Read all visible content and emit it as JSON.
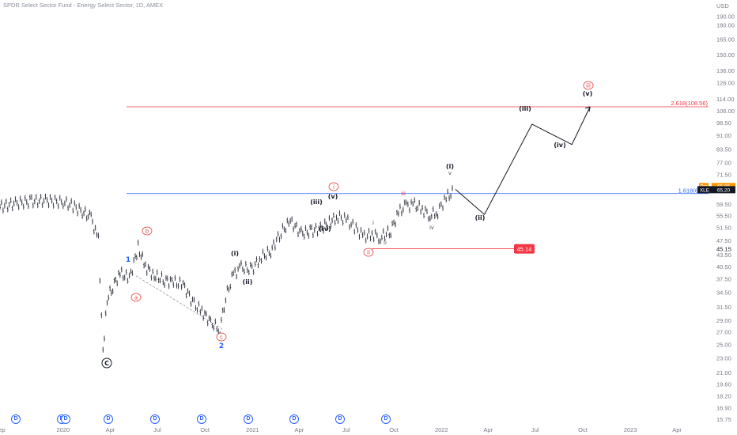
{
  "header": {
    "title": "SPDR Select Sector Fund - Energy Select Sector, 1D, AMEX",
    "currency": "USD"
  },
  "colors": {
    "blue_level": "#2962ff",
    "red_level": "#f23645",
    "price_tag": "#131722",
    "pre_tag": "#ff9800",
    "wave_red": "#e53935",
    "wave_blue": "#2962ff"
  },
  "chart_data": {
    "type": "line",
    "scale": "log",
    "ylim": [
      15.0,
      200.0
    ],
    "y_ticks": [
      "190.00",
      "180.00",
      "165.00",
      "150.00",
      "136.00",
      "126.00",
      "114.00",
      "106.00",
      "98.50",
      "91.00",
      "83.50",
      "77.00",
      "71.50",
      "65.50",
      "59.50",
      "55.50",
      "51.50",
      "47.50",
      "43.50",
      "40.50",
      "37.50",
      "34.50",
      "31.50",
      "29.00",
      "27.00",
      "25.00",
      "23.00",
      "21.00",
      "19.60",
      "18.20",
      "16.90",
      "15.75"
    ],
    "x_ticks": [
      "Sep",
      "2020",
      "Apr",
      "Jul",
      "Oct",
      "2021",
      "Apr",
      "Jul",
      "Oct",
      "2022",
      "Apr",
      "Jul",
      "Oct",
      "2023",
      "Apr"
    ],
    "x": [
      "2019-09-01",
      "2019-10-01",
      "2019-11-01",
      "2019-12-01",
      "2020-01-01",
      "2020-01-20",
      "2020-02-10",
      "2020-02-24",
      "2020-03-09",
      "2020-03-18",
      "2020-03-26",
      "2020-04-06",
      "2020-04-20",
      "2020-05-08",
      "2020-05-25",
      "2020-06-08",
      "2020-06-25",
      "2020-07-15",
      "2020-08-01",
      "2020-08-20",
      "2020-09-10",
      "2020-09-25",
      "2020-10-15",
      "2020-10-30",
      "2020-11-10",
      "2020-11-25",
      "2020-12-10",
      "2020-12-31",
      "2021-01-15",
      "2021-02-05",
      "2021-02-25",
      "2021-03-15",
      "2021-04-05",
      "2021-04-25",
      "2021-05-15",
      "2021-06-01",
      "2021-06-15",
      "2021-07-01",
      "2021-07-20",
      "2021-08-05",
      "2021-08-20",
      "2021-09-05",
      "2021-09-25",
      "2021-10-10",
      "2021-10-25",
      "2021-11-10",
      "2021-11-25",
      "2021-12-10",
      "2021-12-25",
      "2022-01-10",
      "2022-01-25"
    ],
    "series": [
      {
        "values": [
          58.5,
          59.8,
          60.5,
          60.8,
          60.2,
          58.8,
          56.5,
          54.6,
          47.6,
          24.0,
          33.0,
          35.8,
          38.8,
          37.6,
          45.5,
          40.5,
          38.2,
          37.2,
          36.7,
          36.1,
          32.0,
          30.7,
          28.4,
          27.4,
          33.5,
          38.5,
          40.2,
          39.7,
          42.6,
          44.5,
          50.0,
          53.5,
          49.7,
          50.3,
          51.4,
          53.5,
          55.1,
          54.0,
          51.0,
          48.5,
          49.5,
          48.4,
          50.5,
          56.5,
          58.9,
          59.2,
          57.6,
          55.5,
          56.8,
          62.0,
          64.2
        ]
      }
    ],
    "projection": {
      "x": [
        "2022-01-28",
        "2022-03-25",
        "2022-06-25",
        "2022-09-10",
        "2022-10-15"
      ],
      "values": [
        65.2,
        55.8,
        97.5,
        86.0,
        108.56
      ]
    },
    "levels": [
      {
        "label": "2.618(108.56)",
        "value": 108.56
      },
      {
        "label": "1.618(6",
        "value": 63.5
      },
      {
        "label": "45.14",
        "value": 45.14
      }
    ],
    "price_tags": {
      "pre_label": "Pre",
      "pre_value": "65.86",
      "symbol": "XLE",
      "last_value": "65.20",
      "right_value": "45.15"
    },
    "wave_labels": {
      "black": [
        "(i)",
        "(ii)",
        "(iii)",
        "(iv)",
        "(v)",
        "(iii)",
        "(iv)",
        "(i)",
        "(ii)",
        "(iii)",
        "(iv)",
        "(v)",
        "C"
      ],
      "red": [
        "b",
        "a",
        "c",
        "i",
        "ii",
        "iii"
      ],
      "blue": [
        "1",
        "2"
      ],
      "small": [
        "iii",
        "i",
        "ii",
        "iv",
        "v"
      ]
    },
    "events": [
      "D",
      "D",
      "D",
      "D",
      "D",
      "D",
      "D",
      "D",
      "D",
      "D"
    ]
  }
}
